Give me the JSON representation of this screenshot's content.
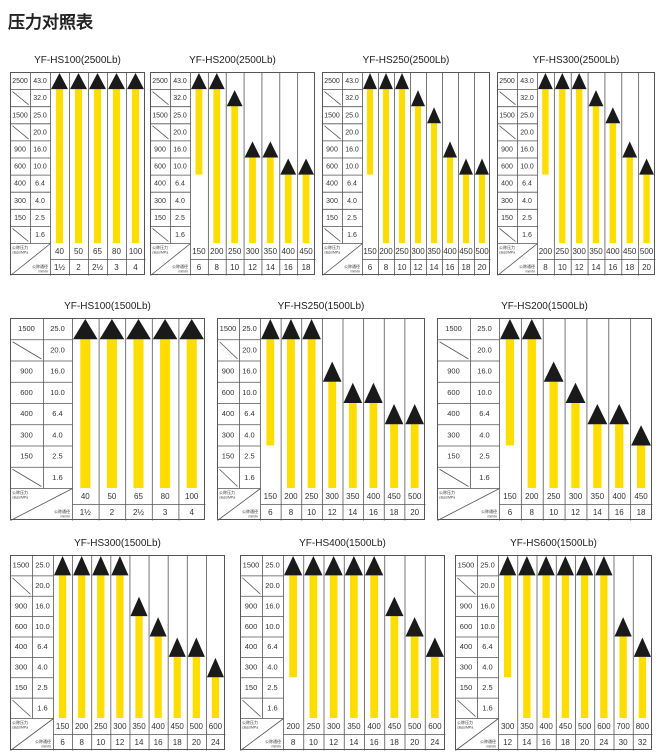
{
  "page_title": "压力对照表",
  "corner_labels": {
    "pressure": "公称压力",
    "pressure_unit": "class/MPa",
    "size": "公称通径",
    "size_unit": "mm/in"
  },
  "colors": {
    "bar": "#ffdd00",
    "arrow": "#1a1a1a",
    "grid": "#555555"
  },
  "chart_data": [
    {
      "type": "bar",
      "title": "YF-HS100(2500Lb)",
      "class_labels": [
        "2500",
        "",
        "1500",
        "",
        "900",
        "600",
        "400",
        "300",
        "150",
        ""
      ],
      "levels": [
        "43.0",
        "32.0",
        "25.0",
        "20.0",
        "16.0",
        "10.0",
        "6.4",
        "4.0",
        "2.5",
        "1.6"
      ],
      "sizes_mm": [
        "40",
        "50",
        "65",
        "80",
        "100"
      ],
      "sizes_in": [
        "1½",
        "2",
        "2½",
        "3",
        "4"
      ],
      "max_mpa": [
        "43.0",
        "43.0",
        "43.0",
        "43.0",
        "43.0"
      ],
      "min_mpa": [
        "1.6",
        "1.6",
        "1.6",
        "1.6",
        "1.6"
      ]
    },
    {
      "type": "bar",
      "title": "YF-HS200(2500Lb)",
      "class_labels": [
        "2500",
        "",
        "1500",
        "",
        "900",
        "600",
        "400",
        "300",
        "150",
        ""
      ],
      "levels": [
        "43.0",
        "32.0",
        "25.0",
        "20.0",
        "16.0",
        "10.0",
        "6.4",
        "4.0",
        "2.5",
        "1.6"
      ],
      "sizes_mm": [
        "150",
        "200",
        "250",
        "300",
        "350",
        "400",
        "450"
      ],
      "sizes_in": [
        "6",
        "8",
        "10",
        "12",
        "14",
        "16",
        "18"
      ],
      "max_mpa": [
        "43.0",
        "43.0",
        "32.0",
        "16.0",
        "16.0",
        "10.0",
        "10.0"
      ],
      "min_mpa": [
        "10.0",
        "1.6",
        "1.6",
        "1.6",
        "1.6",
        "1.6",
        "1.6"
      ]
    },
    {
      "type": "bar",
      "title": "YF-HS250(2500Lb)",
      "class_labels": [
        "2500",
        "",
        "1500",
        "",
        "900",
        "600",
        "400",
        "300",
        "150",
        ""
      ],
      "levels": [
        "43.0",
        "32.0",
        "25.0",
        "20.0",
        "16.0",
        "10.0",
        "6.4",
        "4.0",
        "2.5",
        "1.6"
      ],
      "sizes_mm": [
        "150",
        "200",
        "250",
        "300",
        "350",
        "400",
        "450",
        "500"
      ],
      "sizes_in": [
        "6",
        "8",
        "10",
        "12",
        "14",
        "16",
        "18",
        "20"
      ],
      "max_mpa": [
        "43.0",
        "43.0",
        "43.0",
        "32.0",
        "25.0",
        "16.0",
        "10.0",
        "10.0"
      ],
      "min_mpa": [
        "10.0",
        "1.6",
        "1.6",
        "1.6",
        "1.6",
        "1.6",
        "1.6",
        "1.6"
      ]
    },
    {
      "type": "bar",
      "title": "YF-HS300(2500Lb)",
      "class_labels": [
        "2500",
        "",
        "1500",
        "",
        "900",
        "600",
        "400",
        "300",
        "150",
        ""
      ],
      "levels": [
        "43.0",
        "32.0",
        "25.0",
        "20.0",
        "16.0",
        "10.0",
        "6.4",
        "4.0",
        "2.5",
        "1.6"
      ],
      "sizes_mm": [
        "200",
        "250",
        "300",
        "350",
        "400",
        "450",
        "500"
      ],
      "sizes_in": [
        "8",
        "10",
        "12",
        "14",
        "16",
        "18",
        "20"
      ],
      "max_mpa": [
        "43.0",
        "43.0",
        "43.0",
        "32.0",
        "25.0",
        "16.0",
        "10.0"
      ],
      "min_mpa": [
        "10.0",
        "1.6",
        "1.6",
        "1.6",
        "1.6",
        "1.6",
        "1.6"
      ]
    },
    {
      "type": "bar",
      "title": "YF-HS100(1500Lb)",
      "class_labels": [
        "1500",
        "",
        "900",
        "600",
        "400",
        "300",
        "150",
        ""
      ],
      "levels": [
        "25.0",
        "20.0",
        "16.0",
        "10.0",
        "6.4",
        "4.0",
        "2.5",
        "1.6"
      ],
      "sizes_mm": [
        "40",
        "50",
        "65",
        "80",
        "100"
      ],
      "sizes_in": [
        "1½",
        "2",
        "2½",
        "3",
        "4"
      ],
      "max_mpa": [
        "25.0",
        "25.0",
        "25.0",
        "25.0",
        "25.0"
      ],
      "min_mpa": [
        "1.6",
        "1.6",
        "1.6",
        "1.6",
        "1.6"
      ]
    },
    {
      "type": "bar",
      "title": "YF-HS250(1500Lb)",
      "class_labels": [
        "1500",
        "",
        "900",
        "600",
        "400",
        "300",
        "150",
        ""
      ],
      "levels": [
        "25.0",
        "20.0",
        "16.0",
        "10.0",
        "6.4",
        "4.0",
        "2.5",
        "1.6"
      ],
      "sizes_mm": [
        "150",
        "200",
        "250",
        "300",
        "350",
        "400",
        "450",
        "500"
      ],
      "sizes_in": [
        "6",
        "8",
        "10",
        "12",
        "14",
        "16",
        "18",
        "20"
      ],
      "max_mpa": [
        "25.0",
        "25.0",
        "25.0",
        "16.0",
        "10.0",
        "10.0",
        "6.4",
        "6.4"
      ],
      "min_mpa": [
        "4.0",
        "1.6",
        "1.6",
        "1.6",
        "1.6",
        "1.6",
        "1.6",
        "1.6"
      ]
    },
    {
      "type": "bar",
      "title": "YF-HS200(1500Lb)",
      "class_labels": [
        "1500",
        "",
        "900",
        "600",
        "400",
        "300",
        "150",
        ""
      ],
      "levels": [
        "25.0",
        "20.0",
        "16.0",
        "10.0",
        "6.4",
        "4.0",
        "2.5",
        "1.6"
      ],
      "sizes_mm": [
        "150",
        "200",
        "250",
        "300",
        "350",
        "400",
        "450"
      ],
      "sizes_in": [
        "6",
        "8",
        "10",
        "12",
        "14",
        "16",
        "18"
      ],
      "max_mpa": [
        "25.0",
        "25.0",
        "16.0",
        "10.0",
        "6.4",
        "6.4",
        "4.0"
      ],
      "min_mpa": [
        "4.0",
        "1.6",
        "1.6",
        "1.6",
        "1.6",
        "1.6",
        "1.6"
      ]
    },
    {
      "type": "bar",
      "title": "YF-HS300(1500Lb)",
      "class_labels": [
        "1500",
        "",
        "900",
        "600",
        "400",
        "300",
        "150",
        ""
      ],
      "levels": [
        "25.0",
        "20.0",
        "16.0",
        "10.0",
        "6.4",
        "4.0",
        "2.5",
        "1.6"
      ],
      "sizes_mm": [
        "150",
        "200",
        "250",
        "300",
        "350",
        "400",
        "450",
        "500",
        "600"
      ],
      "sizes_in": [
        "6",
        "8",
        "10",
        "12",
        "14",
        "16",
        "18",
        "20",
        "24"
      ],
      "max_mpa": [
        "25.0",
        "25.0",
        "25.0",
        "25.0",
        "16.0",
        "10.0",
        "6.4",
        "6.4",
        "4.0"
      ],
      "min_mpa": [
        "1.6",
        "1.6",
        "1.6",
        "1.6",
        "1.6",
        "1.6",
        "1.6",
        "1.6",
        "1.6"
      ]
    },
    {
      "type": "bar",
      "title": "YF-HS400(1500Lb)",
      "class_labels": [
        "1500",
        "",
        "900",
        "600",
        "400",
        "300",
        "150",
        ""
      ],
      "levels": [
        "25.0",
        "20.0",
        "16.0",
        "10.0",
        "6.4",
        "4.0",
        "2.5",
        "1.6"
      ],
      "sizes_mm": [
        "200",
        "250",
        "300",
        "350",
        "400",
        "450",
        "500",
        "600"
      ],
      "sizes_in": [
        "8",
        "10",
        "12",
        "14",
        "16",
        "18",
        "20",
        "24"
      ],
      "max_mpa": [
        "25.0",
        "25.0",
        "25.0",
        "25.0",
        "25.0",
        "16.0",
        "10.0",
        "6.4"
      ],
      "min_mpa": [
        "4.0",
        "1.6",
        "1.6",
        "1.6",
        "1.6",
        "1.6",
        "1.6",
        "1.6"
      ]
    },
    {
      "type": "bar",
      "title": "YF-HS600(1500Lb)",
      "class_labels": [
        "1500",
        "",
        "900",
        "600",
        "400",
        "300",
        "150",
        ""
      ],
      "levels": [
        "25.0",
        "20.0",
        "16.0",
        "10.0",
        "6.4",
        "4.0",
        "2.5",
        "1.6"
      ],
      "sizes_mm": [
        "300",
        "350",
        "400",
        "450",
        "500",
        "600",
        "700",
        "800"
      ],
      "sizes_in": [
        "12",
        "14",
        "16",
        "18",
        "20",
        "24",
        "30",
        "32"
      ],
      "max_mpa": [
        "25.0",
        "25.0",
        "25.0",
        "25.0",
        "25.0",
        "25.0",
        "10.0",
        "6.4"
      ],
      "min_mpa": [
        "4.0",
        "1.6",
        "1.6",
        "1.6",
        "1.6",
        "1.6",
        "1.6",
        "1.6"
      ]
    }
  ]
}
